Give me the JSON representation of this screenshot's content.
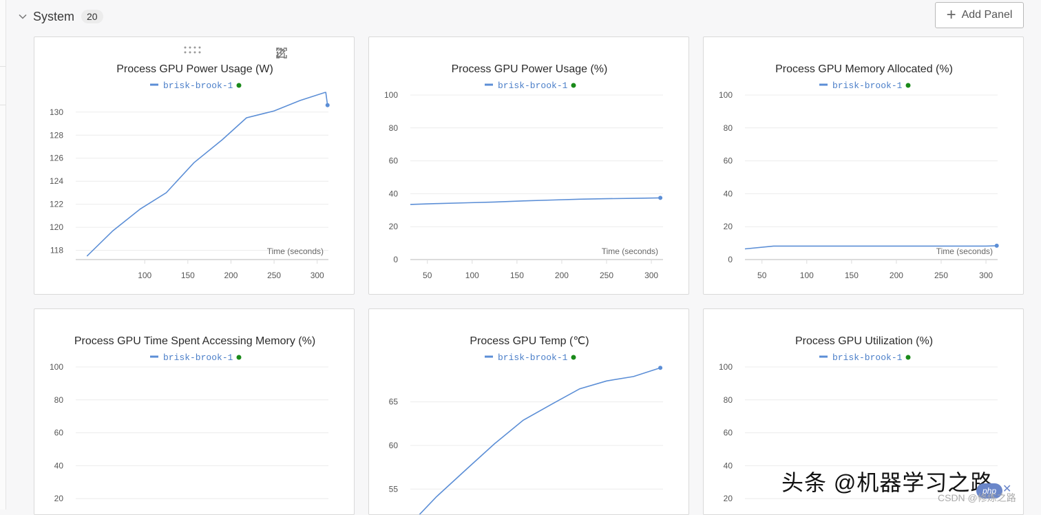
{
  "section": {
    "title": "System",
    "count": "20",
    "collapse_icon": "chevron-down-icon"
  },
  "toolbar": {
    "add_panel_label": "Add Panel",
    "add_icon": "plus-icon"
  },
  "panel_tools": {
    "icons": [
      "share-icon",
      "pencil-icon",
      "expand-icon",
      "more-vert-icon"
    ]
  },
  "colors": {
    "series": "#5b8ed6",
    "status_dot": "#1a8a1a"
  },
  "watermark": {
    "text": "头条 @机器学习之路",
    "csdn": "CSDN @修炼之路",
    "badge": "php"
  },
  "chart_data": [
    {
      "type": "line",
      "title": "Process GPU Power Usage (W)",
      "legend": "brisk-brook-1",
      "xlabel": "Time (seconds)",
      "x_ticks": [
        100,
        150,
        200,
        250,
        300
      ],
      "y_ticks": [
        118,
        120,
        122,
        124,
        126,
        128,
        130
      ],
      "xlim": [
        20,
        313
      ],
      "ylim": [
        117.2,
        131.6
      ],
      "series": [
        {
          "x": [
            33,
            63,
            95,
            125,
            157,
            190,
            218,
            250,
            280,
            309,
            310,
            312
          ],
          "y": [
            117.5,
            119.7,
            121.6,
            123.0,
            125.6,
            127.6,
            129.5,
            130.1,
            131.0,
            131.7,
            131.7,
            130.6
          ]
        }
      ]
    },
    {
      "type": "line",
      "title": "Process GPU Power Usage (%)",
      "legend": "brisk-brook-1",
      "xlabel": "Time (seconds)",
      "x_ticks": [
        50,
        100,
        150,
        200,
        250,
        300
      ],
      "y_ticks": [
        0,
        20,
        40,
        60,
        80,
        100
      ],
      "xlim": [
        31,
        313
      ],
      "ylim": [
        0,
        100
      ],
      "series": [
        {
          "x": [
            31,
            60,
            95,
            125,
            160,
            190,
            220,
            250,
            280,
            310
          ],
          "y": [
            33.5,
            34.0,
            34.5,
            35.0,
            35.7,
            36.2,
            36.7,
            37.0,
            37.2,
            37.5
          ]
        }
      ]
    },
    {
      "type": "line",
      "title": "Process GPU Memory Allocated (%)",
      "legend": "brisk-brook-1",
      "xlabel": "Time (seconds)",
      "x_ticks": [
        50,
        100,
        150,
        200,
        250,
        300
      ],
      "y_ticks": [
        0,
        20,
        40,
        60,
        80,
        100
      ],
      "xlim": [
        31,
        313
      ],
      "ylim": [
        0,
        100
      ],
      "series": [
        {
          "x": [
            31,
            63,
            100,
            150,
            200,
            250,
            300,
            312
          ],
          "y": [
            6.5,
            8.2,
            8.2,
            8.2,
            8.2,
            8.2,
            8.2,
            8.4
          ]
        }
      ]
    },
    {
      "type": "line",
      "title": "Process GPU Time Spent Accessing Memory (%)",
      "legend": "brisk-brook-1",
      "xlabel": "",
      "x_ticks": [],
      "y_ticks": [
        20,
        40,
        60,
        80,
        100
      ],
      "xlim": [
        20,
        313
      ],
      "ylim": [
        0,
        100
      ],
      "series": []
    },
    {
      "type": "line",
      "title": "Process GPU Temp (℃)",
      "legend": "brisk-brook-1",
      "xlabel": "",
      "x_ticks": [],
      "y_ticks": [
        55,
        60,
        65
      ],
      "xlim": [
        31,
        313
      ],
      "ylim": [
        51,
        69
      ],
      "series": [
        {
          "x": [
            33,
            60,
            95,
            125,
            157,
            190,
            220,
            250,
            280,
            310
          ],
          "y": [
            51.2,
            54.1,
            57.4,
            60.2,
            62.9,
            64.8,
            66.5,
            67.4,
            67.9,
            68.9
          ]
        }
      ]
    },
    {
      "type": "line",
      "title": "Process GPU Utilization (%)",
      "legend": "brisk-brook-1",
      "xlabel": "",
      "x_ticks": [],
      "y_ticks": [
        20,
        40,
        60,
        80,
        100
      ],
      "xlim": [
        31,
        313
      ],
      "ylim": [
        0,
        100
      ],
      "series": []
    }
  ]
}
